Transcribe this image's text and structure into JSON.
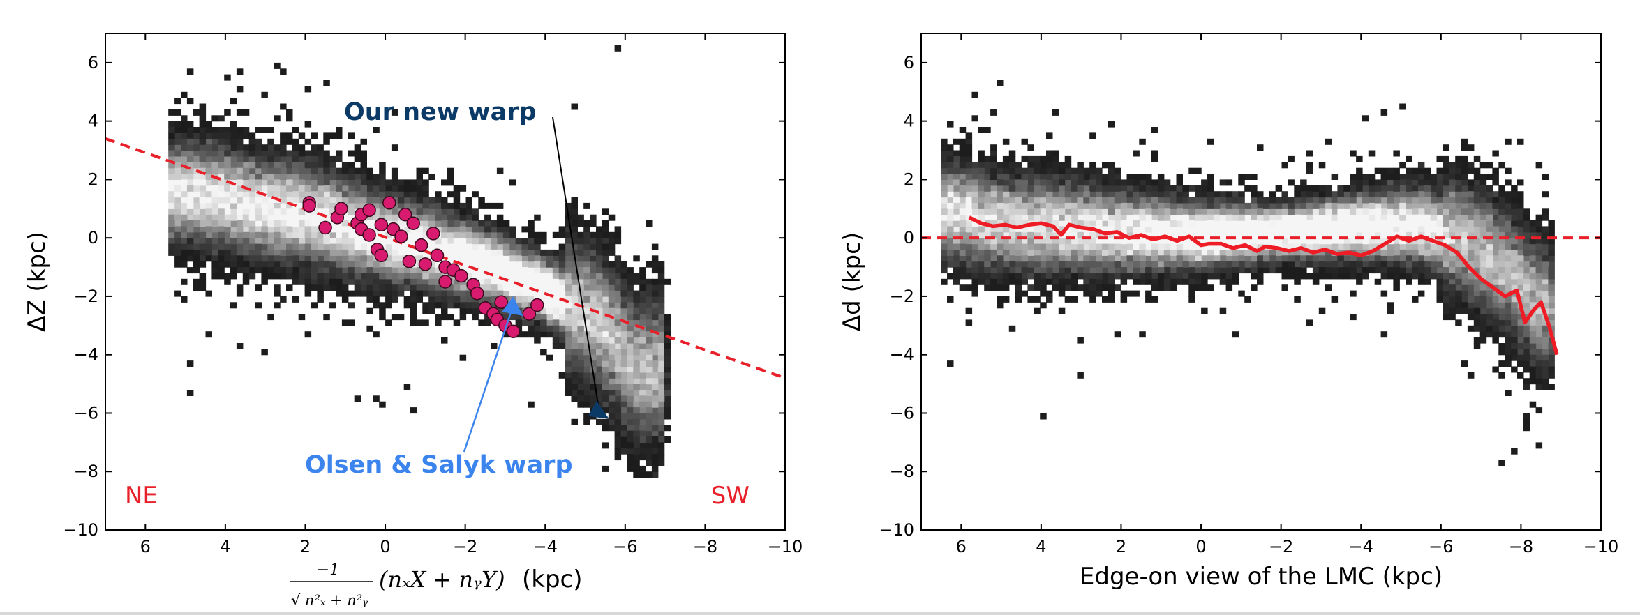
{
  "colors": {
    "fit_line": "#e8202a",
    "profile_line": "#ee1c24",
    "points_fill": "#d81b6e",
    "new_warp_text": "#0b3a66",
    "olsen_text": "#3b84ee",
    "corner_text": "#e8202a"
  },
  "chart_data": [
    {
      "type": "heatmap",
      "panel": "left",
      "xlabel_math": "−1 / √(nₓ² + n_y²) (nₓX + n_yY)",
      "xlabel_unit": "(kpc)",
      "ylabel": "ΔZ (kpc)",
      "xlim": [
        7,
        -10
      ],
      "ylim": [
        7,
        -10
      ],
      "xticks": [
        6,
        4,
        2,
        0,
        -2,
        -4,
        -6,
        -8,
        -10
      ],
      "yticks": [
        -10,
        -8,
        -6,
        -4,
        -2,
        0,
        2,
        4,
        6
      ],
      "xtick_labels": [
        "6",
        "4",
        "2",
        "0",
        "−2",
        "−4",
        "−6",
        "−8",
        "−10"
      ],
      "ytick_labels": [
        "−10",
        "−8",
        "−6",
        "−4",
        "−2",
        "0",
        "2",
        "4",
        "6"
      ],
      "density_ridge": [
        [
          5.0,
          1.6
        ],
        [
          3.5,
          1.2
        ],
        [
          2.0,
          0.8
        ],
        [
          0.5,
          0.2
        ],
        [
          -1.0,
          -0.3
        ],
        [
          -2.5,
          -0.9
        ],
        [
          -4.0,
          -1.8
        ],
        [
          -5.3,
          -2.8
        ],
        [
          -6.3,
          -4.5
        ]
      ],
      "fit_line": {
        "x": [
          7.0,
          -10.0
        ],
        "y": [
          3.4,
          -4.8
        ]
      },
      "points": {
        "series_label": "Olsen & Salyk warp",
        "x": [
          1.9,
          1.9,
          1.5,
          1.2,
          1.1,
          0.7,
          0.6,
          0.6,
          0.4,
          0.4,
          0.2,
          0.1,
          0.1,
          -0.1,
          -0.2,
          -0.4,
          -0.5,
          -0.6,
          -0.7,
          -0.9,
          -1.0,
          -1.2,
          -1.3,
          -1.5,
          -1.5,
          -1.7,
          -1.9,
          -2.2,
          -2.3,
          -2.5,
          -2.7,
          -2.8,
          -3.0,
          -3.2,
          -2.9,
          -3.6,
          -3.8
        ],
        "y": [
          1.2,
          1.1,
          0.35,
          0.7,
          1.0,
          0.5,
          0.8,
          0.3,
          0.1,
          0.95,
          -0.4,
          0.45,
          -0.6,
          1.2,
          0.3,
          0.05,
          0.8,
          -0.8,
          0.5,
          -0.25,
          -0.9,
          0.15,
          -0.6,
          -1.0,
          -1.5,
          -1.1,
          -1.3,
          -1.6,
          -1.9,
          -2.4,
          -2.6,
          -2.8,
          -3.0,
          -3.2,
          -2.2,
          -2.6,
          -2.3
        ]
      },
      "annotations": [
        {
          "text": "Our new warp",
          "arrow_to": [
            -5.6,
            -6.2
          ]
        },
        {
          "text": "Olsen & Salyk warp",
          "arrow_to": [
            -3.2,
            -2.0
          ]
        },
        {
          "text": "NE"
        },
        {
          "text": "SW"
        }
      ]
    },
    {
      "type": "heatmap",
      "panel": "right",
      "xlabel": "Edge-on view of the LMC (kpc)",
      "ylabel": "Δd (kpc)",
      "xlim": [
        7,
        -10
      ],
      "ylim": [
        7,
        -10
      ],
      "xticks": [
        6,
        4,
        2,
        0,
        -2,
        -4,
        -6,
        -8,
        -10
      ],
      "yticks": [
        -10,
        -8,
        -6,
        -4,
        -2,
        0,
        2,
        4,
        6
      ],
      "xtick_labels": [
        "6",
        "4",
        "2",
        "0",
        "−2",
        "−4",
        "−6",
        "−8",
        "−10"
      ],
      "ytick_labels": [
        "−10",
        "−8",
        "−6",
        "−4",
        "−2",
        "0",
        "2",
        "4",
        "6"
      ],
      "density_ridge": [
        [
          6.2,
          0.9
        ],
        [
          5.0,
          0.5
        ],
        [
          3.5,
          0.4
        ],
        [
          2.0,
          0.2
        ],
        [
          0.0,
          0.1
        ],
        [
          -2.0,
          0.2
        ],
        [
          -4.0,
          0.4
        ],
        [
          -5.5,
          0.4
        ],
        [
          -6.5,
          0.0
        ],
        [
          -7.5,
          -0.9
        ],
        [
          -8.5,
          -2.4
        ]
      ],
      "zero_line": 0,
      "profile": {
        "x": [
          5.8,
          5.5,
          5.2,
          4.9,
          4.6,
          4.3,
          4.0,
          3.7,
          3.5,
          3.3,
          3.0,
          2.7,
          2.4,
          2.1,
          1.8,
          1.5,
          1.2,
          0.9,
          0.6,
          0.3,
          0.0,
          -0.2,
          -0.5,
          -0.8,
          -1.1,
          -1.4,
          -1.6,
          -1.9,
          -2.2,
          -2.5,
          -2.8,
          -3.1,
          -3.4,
          -3.7,
          -4.0,
          -4.3,
          -4.6,
          -4.9,
          -5.2,
          -5.5,
          -5.8,
          -6.1,
          -6.4,
          -6.7,
          -7.0,
          -7.3,
          -7.6,
          -7.9,
          -8.1,
          -8.3,
          -8.5,
          -8.7,
          -8.9
        ],
        "y": [
          0.7,
          0.5,
          0.4,
          0.45,
          0.35,
          0.45,
          0.5,
          0.4,
          0.1,
          0.45,
          0.35,
          0.3,
          0.15,
          0.2,
          0.0,
          0.1,
          -0.05,
          0.05,
          -0.1,
          0.05,
          -0.25,
          -0.2,
          -0.2,
          -0.35,
          -0.25,
          -0.45,
          -0.3,
          -0.35,
          -0.45,
          -0.35,
          -0.5,
          -0.4,
          -0.55,
          -0.5,
          -0.6,
          -0.45,
          -0.2,
          0.05,
          -0.1,
          0.05,
          -0.1,
          -0.25,
          -0.5,
          -1.0,
          -1.4,
          -1.7,
          -2.0,
          -1.8,
          -2.9,
          -2.5,
          -2.2,
          -3.0,
          -4.0
        ]
      }
    }
  ]
}
